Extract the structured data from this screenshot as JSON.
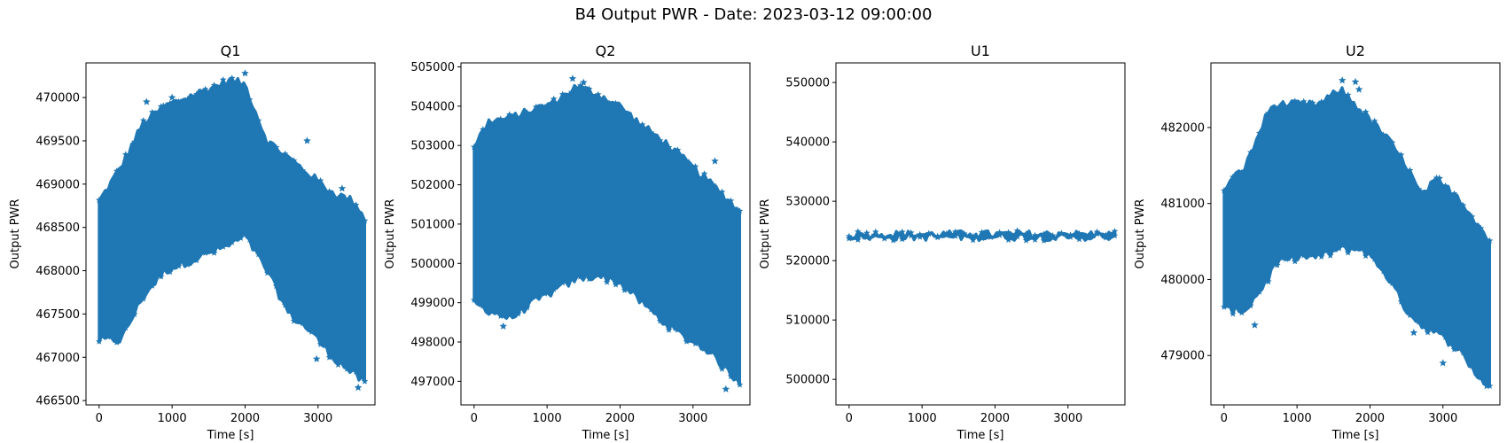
{
  "figure": {
    "title": "B4 Output PWR - Date: 2023-03-12 09:00:00",
    "marker_color": "#1f77b4",
    "marker": "star"
  },
  "chart_data": [
    {
      "type": "scatter",
      "title": "Q1",
      "xlabel": "Time [s]",
      "ylabel": "Output PWR",
      "xlim": [
        -180,
        3780
      ],
      "ylim": [
        466450,
        470400
      ],
      "xticks": [
        0,
        1000,
        2000,
        3000
      ],
      "yticks": [
        466500,
        467000,
        467500,
        468000,
        468500,
        469000,
        469500,
        470000
      ],
      "band_x": [
        0,
        300,
        600,
        900,
        1200,
        1500,
        1800,
        2000,
        2300,
        2600,
        2900,
        3200,
        3500,
        3640
      ],
      "band_upper": [
        468800,
        469200,
        469700,
        469900,
        470000,
        470100,
        470200,
        470150,
        469500,
        469300,
        469100,
        468900,
        468800,
        468600
      ],
      "band_lower": [
        467200,
        467200,
        467700,
        468000,
        468100,
        468200,
        468300,
        468400,
        468000,
        467500,
        467300,
        467000,
        466800,
        466700
      ],
      "outliers": [
        [
          650,
          469950
        ],
        [
          880,
          469900
        ],
        [
          1000,
          470000
        ],
        [
          2000,
          470280
        ],
        [
          2850,
          469500
        ],
        [
          2980,
          466980
        ],
        [
          3330,
          468950
        ],
        [
          3550,
          466650
        ]
      ]
    },
    {
      "type": "scatter",
      "title": "Q2",
      "xlabel": "Time [s]",
      "ylabel": "Output PWR",
      "xlim": [
        -180,
        3780
      ],
      "ylim": [
        496400,
        505100
      ],
      "xticks": [
        0,
        1000,
        2000,
        3000
      ],
      "yticks": [
        497000,
        498000,
        499000,
        500000,
        501000,
        502000,
        503000,
        504000,
        505000
      ],
      "band_x": [
        0,
        200,
        500,
        800,
        1100,
        1400,
        1700,
        2000,
        2300,
        2600,
        2900,
        3200,
        3500,
        3640
      ],
      "band_upper": [
        503000,
        503600,
        503700,
        503900,
        504100,
        504500,
        504300,
        504000,
        503500,
        503100,
        502600,
        502100,
        501600,
        501300
      ],
      "band_lower": [
        499000,
        498800,
        498600,
        499000,
        499300,
        499600,
        499700,
        499500,
        499000,
        498500,
        498100,
        497800,
        497200,
        497000
      ],
      "outliers": [
        [
          1350,
          504700
        ],
        [
          1500,
          504600
        ],
        [
          3300,
          502600
        ],
        [
          3450,
          496800
        ],
        [
          400,
          498400
        ]
      ]
    },
    {
      "type": "scatter",
      "title": "U1",
      "xlabel": "Time [s]",
      "ylabel": "Output PWR",
      "xlim": [
        -180,
        3780
      ],
      "ylim": [
        495700,
        553300
      ],
      "xticks": [
        0,
        1000,
        2000,
        3000
      ],
      "yticks": [
        500000,
        510000,
        520000,
        530000,
        540000,
        550000
      ],
      "band_x": [
        0,
        3640
      ],
      "band_upper": [
        524400,
        524400
      ],
      "band_lower": [
        524050,
        524050
      ],
      "outliers": []
    },
    {
      "type": "scatter",
      "title": "U2",
      "xlabel": "Time [s]",
      "ylabel": "Output PWR",
      "xlim": [
        -180,
        3780
      ],
      "ylim": [
        478350,
        482850
      ],
      "xticks": [
        0,
        1000,
        2000,
        3000
      ],
      "yticks": [
        479000,
        480000,
        481000,
        482000
      ],
      "band_x": [
        0,
        300,
        600,
        700,
        1000,
        1300,
        1600,
        1900,
        2200,
        2500,
        2700,
        2900,
        3200,
        3500,
        3640
      ],
      "band_upper": [
        481200,
        481500,
        482200,
        482300,
        482300,
        482300,
        482500,
        482200,
        481900,
        481500,
        481100,
        481300,
        481100,
        480700,
        480500
      ],
      "band_lower": [
        479600,
        479600,
        480000,
        480200,
        480300,
        480300,
        480400,
        480400,
        480100,
        479600,
        479400,
        479300,
        479100,
        478700,
        478600
      ],
      "outliers": [
        [
          1620,
          482620
        ],
        [
          1800,
          482600
        ],
        [
          1850,
          482500
        ],
        [
          3130,
          481100
        ],
        [
          2950,
          481330
        ],
        [
          3000,
          478900
        ],
        [
          420,
          479400
        ],
        [
          2600,
          479300
        ],
        [
          3600,
          478600
        ]
      ]
    }
  ]
}
